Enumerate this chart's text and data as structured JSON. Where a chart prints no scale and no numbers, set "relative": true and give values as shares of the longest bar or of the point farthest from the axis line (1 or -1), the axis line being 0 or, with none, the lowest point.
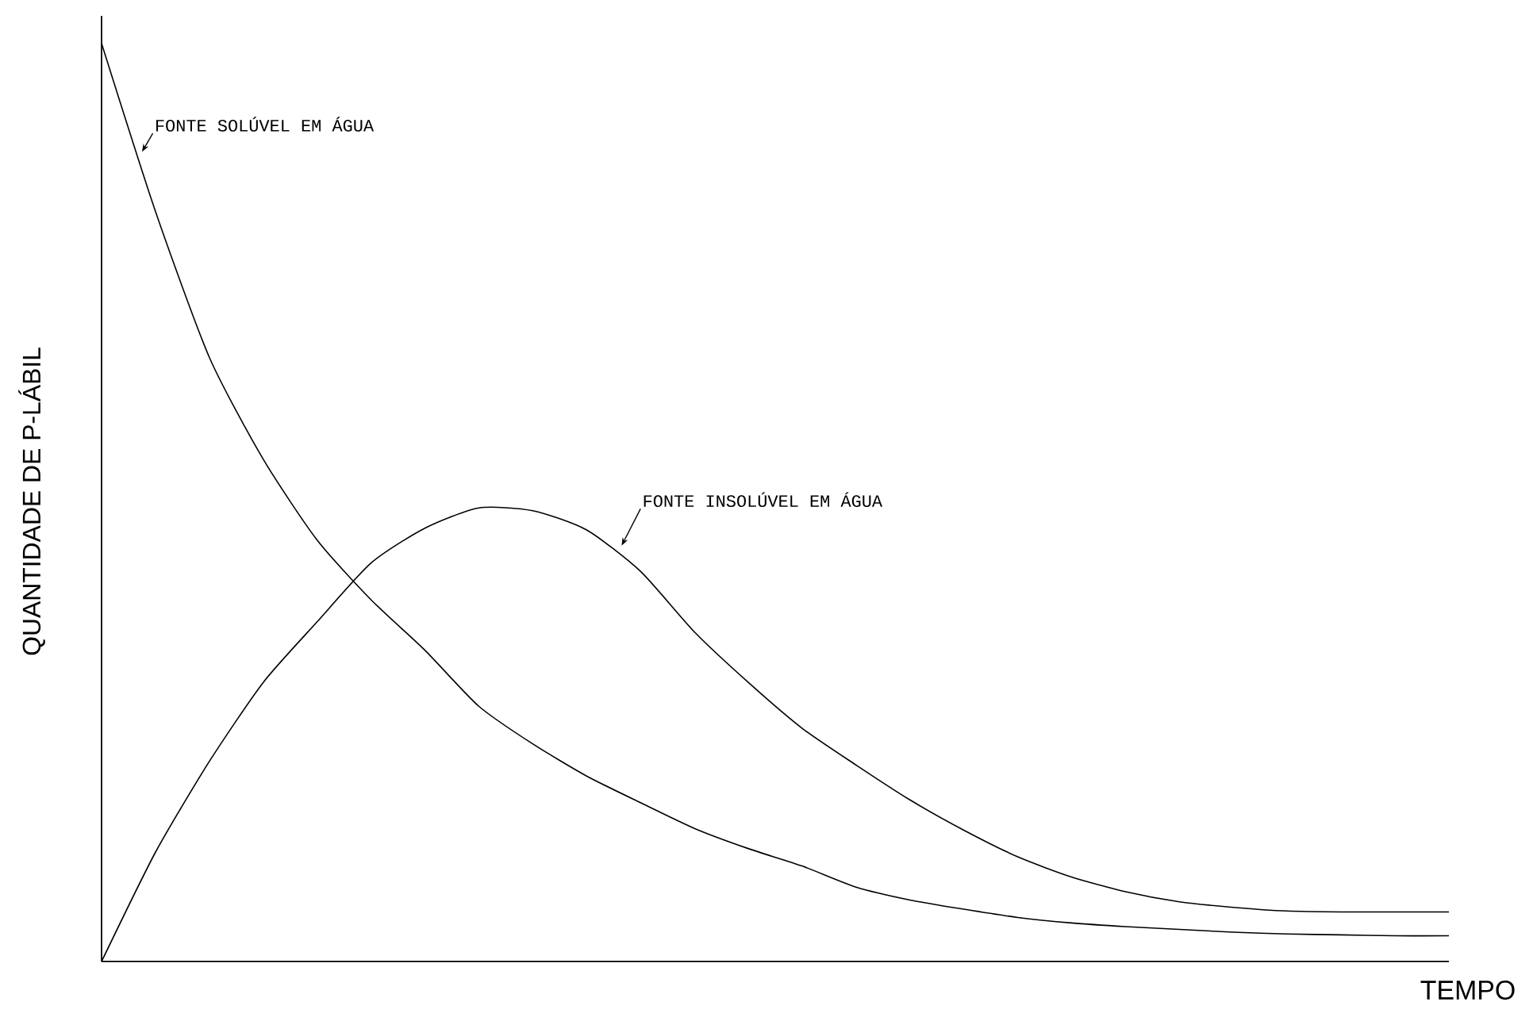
{
  "chart_data": {
    "type": "line",
    "relative": true,
    "xlabel": "TEMPO",
    "ylabel": "QUANTIDADE DE P-LÁBIL",
    "marker": "none",
    "categories": [
      null,
      null,
      null,
      null,
      null,
      null,
      null,
      null,
      null,
      null,
      null,
      null,
      null,
      null,
      null,
      null,
      null,
      null,
      null,
      null,
      null,
      null,
      null,
      null,
      null,
      null
    ],
    "series": [
      {
        "name": "FONTE SOLÚVEL EM ÁGUA",
        "color": "#000000",
        "values": [
          1,
          0.817,
          0.658,
          0.547,
          0.459,
          0.394,
          0.339,
          0.278,
          0.237,
          0.202,
          0.173,
          0.145,
          0.123,
          0.104,
          0.081,
          0.067,
          0.057,
          0.048,
          0.042,
          0.038,
          0.035,
          0.032,
          0.03,
          0.029,
          0.028,
          0.028
        ]
      },
      {
        "name": "FONTE INSOLÚVEL EM ÁGUA",
        "color": "#000000",
        "values": [
          0,
          0.119,
          0.218,
          0.304,
          0.37,
          0.434,
          0.472,
          0.494,
          0.491,
          0.47,
          0.425,
          0.359,
          0.304,
          0.254,
          0.214,
          0.176,
          0.143,
          0.114,
          0.092,
          0.076,
          0.065,
          0.059,
          0.055,
          0.054,
          0.054,
          0.054
        ]
      }
    ]
  }
}
